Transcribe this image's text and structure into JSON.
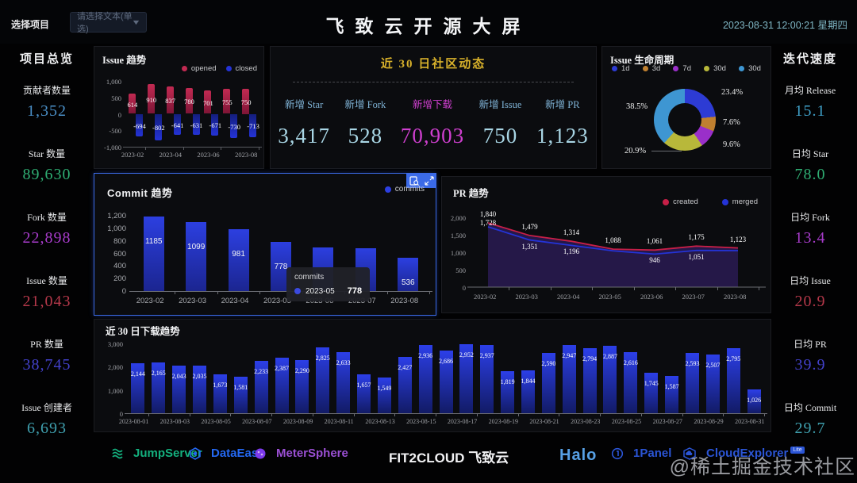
{
  "topbar": {
    "select_label": "选择项目",
    "select_placeholder": "请选择文本(单选)",
    "title": "飞致云开源大屏",
    "datetime": "2023-08-31 12:00:21 星期四"
  },
  "left_sidebar": {
    "title": "项目总览",
    "items": [
      {
        "label": "贡献者数量",
        "value": "1,352",
        "color": "#4a8fc7"
      },
      {
        "label": "Star 数量",
        "value": "89,630",
        "color": "#2fae73"
      },
      {
        "label": "Fork 数量",
        "value": "22,898",
        "color": "#a63bc9"
      },
      {
        "label": "Issue 数量",
        "value": "21,043",
        "color": "#b5384a"
      },
      {
        "label": "PR 数量",
        "value": "38,745",
        "color": "#4241c9"
      },
      {
        "label": "Issue 创建者",
        "value": "6,693",
        "color": "#3f9fae"
      }
    ]
  },
  "right_sidebar": {
    "title": "迭代速度",
    "items": [
      {
        "label": "月均 Release",
        "value": "15.1",
        "color": "#3f9fc7"
      },
      {
        "label": "日均 Star",
        "value": "78.0",
        "color": "#2fae73"
      },
      {
        "label": "日均 Fork",
        "value": "13.4",
        "color": "#a63bc9"
      },
      {
        "label": "日均 Issue",
        "value": "20.9",
        "color": "#b5384a"
      },
      {
        "label": "日均 PR",
        "value": "39.9",
        "color": "#4241c9"
      },
      {
        "label": "日均 Commit",
        "value": "29.7",
        "color": "#3f9fae"
      }
    ]
  },
  "community": {
    "title": "近 30 日社区动态",
    "label_color": "#7fb3d6",
    "value_color": "#a9d6e5",
    "highlight_color": "#cf3fcf",
    "stats": [
      {
        "label": "新增 Star",
        "value": "3,417",
        "highlight": false
      },
      {
        "label": "新增 Fork",
        "value": "528",
        "highlight": false
      },
      {
        "label": "新增下载",
        "value": "70,903",
        "highlight": true
      },
      {
        "label": "新增 Issue",
        "value": "750",
        "highlight": false
      },
      {
        "label": "新增 PR",
        "value": "1,123",
        "highlight": false
      }
    ]
  },
  "chart_data": [
    {
      "id": "issue_trend",
      "type": "bar",
      "title": "Issue 趋势",
      "categories": [
        "2023-02",
        "2023-03",
        "2023-04",
        "2023-05",
        "2023-06",
        "2023-07",
        "2023-08"
      ],
      "x_tick_labels": [
        "2023-02",
        "2023-04",
        "2023-06",
        "2023-08"
      ],
      "series": [
        {
          "name": "opened",
          "color": "#c22a52",
          "color2": "#7e1536",
          "values": [
            614,
            910,
            837,
            780,
            701,
            755,
            750
          ],
          "labels": [
            "614",
            "910",
            "837",
            "780",
            "701",
            "755",
            "750"
          ]
        },
        {
          "name": "closed",
          "color": "#2433d6",
          "color2": "#141e7e",
          "values": [
            -694,
            -802,
            -641,
            -631,
            -671,
            -730,
            -713
          ],
          "labels": [
            "-694",
            "-802",
            "-641",
            "-631",
            "-671",
            "-730",
            "-713"
          ]
        }
      ],
      "ylim": [
        -1000,
        1000
      ],
      "y_ticks": [
        "1,000",
        "500",
        "0",
        "-500",
        "-1,000"
      ]
    },
    {
      "id": "commit_trend",
      "type": "bar",
      "title": "Commit 趋势",
      "legend": [
        "commits"
      ],
      "series_color": "#2c3fe0",
      "series_color2": "#1b2590",
      "categories": [
        "2023-02",
        "2023-03",
        "2023-04",
        "2023-05",
        "2023-06",
        "2023-07",
        "2023-08"
      ],
      "values": [
        1185,
        1099,
        981,
        778,
        700,
        680,
        536
      ],
      "labels": [
        "1185",
        "1099",
        "981",
        "778",
        "",
        "",
        "536"
      ],
      "ylim": [
        0,
        1200
      ],
      "y_ticks": [
        "1,200",
        "1,000",
        "800",
        "600",
        "400",
        "200",
        "0"
      ],
      "tooltip": {
        "series": "commits",
        "x": "2023-05",
        "value": "778"
      }
    },
    {
      "id": "pr_trend",
      "type": "line",
      "title": "PR 趋势",
      "categories": [
        "2023-02",
        "2023-03",
        "2023-04",
        "2023-05",
        "2023-06",
        "2023-07",
        "2023-08"
      ],
      "series": [
        {
          "name": "created",
          "color": "#c71f47",
          "values": [
            1840,
            1479,
            1314,
            1088,
            1061,
            1175,
            1123
          ],
          "labels": [
            "1,840",
            "1,479",
            "1,314",
            "1,088",
            "1,061",
            "1,175",
            "1,123"
          ]
        },
        {
          "name": "merged",
          "color": "#2433d6",
          "values": [
            1728,
            1351,
            1196,
            1040,
            946,
            1051,
            1046
          ],
          "labels": [
            "1,728",
            "1,351",
            "1,196",
            "",
            "946",
            "1,051",
            ""
          ]
        }
      ],
      "area_fill": "rgba(44,28,86,0.8)",
      "ylim": [
        0,
        2000
      ],
      "y_ticks": [
        "2,000",
        "1,500",
        "1,000",
        "500",
        "0"
      ]
    },
    {
      "id": "downloads",
      "type": "bar",
      "title": "近 30 日下载趋势",
      "series_color": "#2c3fe8",
      "series_color2": "#121b66",
      "categories": [
        "2023-08-01",
        "2023-08-02",
        "2023-08-03",
        "2023-08-04",
        "2023-08-05",
        "2023-08-06",
        "2023-08-07",
        "2023-08-08",
        "2023-08-09",
        "2023-08-10",
        "2023-08-11",
        "2023-08-12",
        "2023-08-13",
        "2023-08-14",
        "2023-08-15",
        "2023-08-16",
        "2023-08-17",
        "2023-08-18",
        "2023-08-19",
        "2023-08-20",
        "2023-08-21",
        "2023-08-22",
        "2023-08-23",
        "2023-08-24",
        "2023-08-25",
        "2023-08-26",
        "2023-08-27",
        "2023-08-28",
        "2023-08-29",
        "2023-08-30",
        "2023-08-31"
      ],
      "x_tick_labels": [
        "2023-08-01",
        "2023-08-03",
        "2023-08-05",
        "2023-08-07",
        "2023-08-09",
        "2023-08-11",
        "2023-08-13",
        "2023-08-15",
        "2023-08-17",
        "2023-08-19",
        "2023-08-21",
        "2023-08-23",
        "2023-08-25",
        "2023-08-27",
        "2023-08-29",
        "2023-08-31"
      ],
      "values": [
        2144,
        2165,
        2043,
        2035,
        1673,
        1581,
        2233,
        2387,
        2290,
        2825,
        2633,
        1657,
        1549,
        2427,
        2936,
        2686,
        2952,
        2937,
        1819,
        1844,
        2590,
        2947,
        2794,
        2887,
        2616,
        1745,
        1587,
        2593,
        2507,
        2795,
        1026
      ],
      "labels": [
        "2,144",
        "2,165",
        "2,043",
        "2,035",
        "1,673",
        "1,581",
        "2,233",
        "2,387",
        "2,290",
        "2,825",
        "2,633",
        "1,657",
        "1,549",
        "2,427",
        "2,936",
        "2,686",
        "2,952",
        "2,937",
        "1,819",
        "1,844",
        "2,590",
        "2,947",
        "2,794",
        "2,887",
        "2,616",
        "1,745",
        "1,587",
        "2,593",
        "2,507",
        "2,795",
        "1,026"
      ],
      "ylim": [
        0,
        3000
      ],
      "y_ticks": [
        "3,000",
        "2,000",
        "1,000",
        "0"
      ]
    },
    {
      "id": "issue_lifecycle",
      "type": "pie",
      "title": "Issue 生命周期",
      "slices": [
        {
          "label": "1d",
          "value": 23.4,
          "pct": "23.4%",
          "color": "#2d3bd4"
        },
        {
          "label": "3d",
          "value": 7.6,
          "pct": "7.6%",
          "color": "#c08030"
        },
        {
          "label": "7d",
          "value": 9.6,
          "pct": "9.6%",
          "color": "#9a2fc9"
        },
        {
          "label": "30d",
          "value": 20.9,
          "pct": "20.9%",
          "color": "#b8b83a"
        },
        {
          "label": "30d",
          "value": 38.5,
          "pct": "38.5%",
          "color": "#3e96d2"
        }
      ]
    }
  ],
  "footer": {
    "brands": [
      {
        "name": "JumpServer",
        "color": "#14b07e",
        "icon": "jumpserver-logo-icon"
      },
      {
        "name": "DataEase",
        "color": "#2468f2",
        "icon": "dataease-logo-icon"
      },
      {
        "name": "MeterSphere",
        "color": "#9a4fd3",
        "icon": "metersphere-logo-icon"
      },
      {
        "name": "FIT2CLOUD 飞致云",
        "color": "#f2f2f4",
        "icon": ""
      },
      {
        "name": "Halo",
        "color": "#57a0e5",
        "icon": ""
      },
      {
        "name": "1Panel",
        "color": "#2b55d6",
        "icon": "1panel-logo-icon"
      },
      {
        "name": "CloudExplorer",
        "color": "#2b55d6",
        "icon": "cloudexplorer-logo-icon",
        "badge": "Lite"
      }
    ]
  },
  "watermark": "@稀土掘金技术社区"
}
